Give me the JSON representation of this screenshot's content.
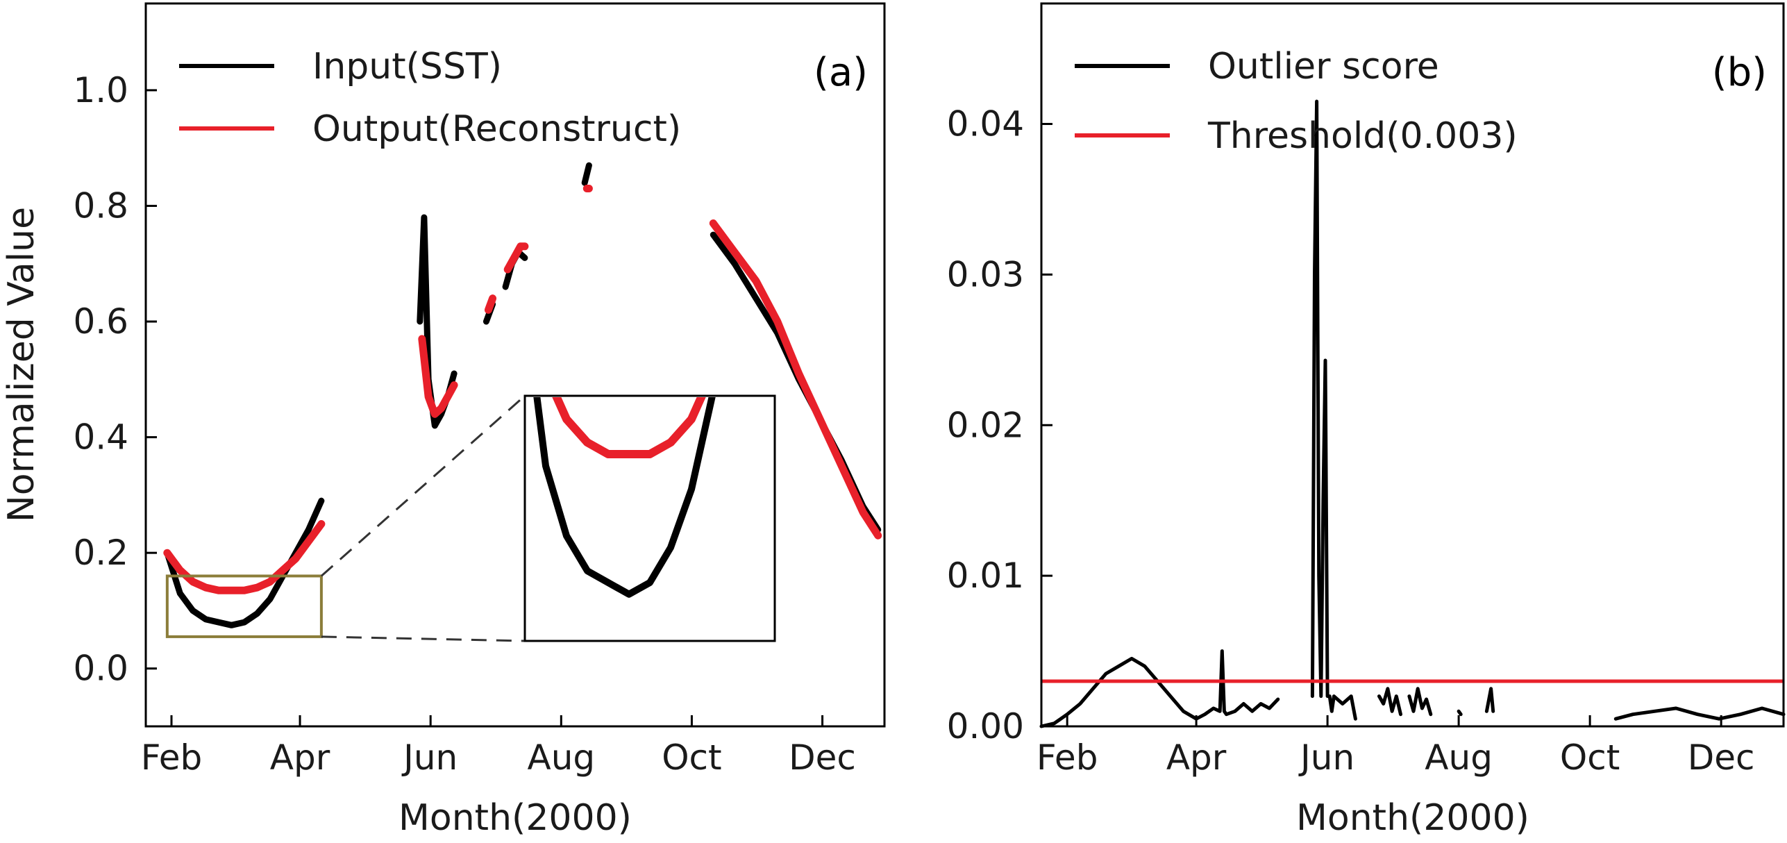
{
  "chart_data": [
    {
      "panel_label": "(a)",
      "type": "line",
      "xlabel": "Month(2000)",
      "ylabel": "Normalized Value",
      "x_unit": "day of year 2000",
      "xlim": [
        20,
        365
      ],
      "ylim": [
        -0.1,
        1.15
      ],
      "x_ticks": [
        {
          "x": 32,
          "label": "Feb"
        },
        {
          "x": 92,
          "label": "Apr"
        },
        {
          "x": 153,
          "label": "Jun"
        },
        {
          "x": 214,
          "label": "Aug"
        },
        {
          "x": 275,
          "label": "Oct"
        },
        {
          "x": 336,
          "label": "Dec"
        }
      ],
      "y_ticks": [
        {
          "y": 0.0,
          "label": "0.0"
        },
        {
          "y": 0.2,
          "label": "0.2"
        },
        {
          "y": 0.4,
          "label": "0.4"
        },
        {
          "y": 0.6,
          "label": "0.6"
        },
        {
          "y": 0.8,
          "label": "0.8"
        },
        {
          "y": 1.0,
          "label": "1.0"
        }
      ],
      "legend": "top-left",
      "panel_label_position": "top-right",
      "series": [
        {
          "name": "Input(SST)",
          "color": "#000000",
          "segments": [
            {
              "x": [
                30,
                36,
                42,
                48,
                54,
                60,
                66,
                72,
                78,
                84,
                90,
                96,
                102
              ],
              "y": [
                0.2,
                0.13,
                0.1,
                0.085,
                0.08,
                0.075,
                0.08,
                0.095,
                0.12,
                0.16,
                0.2,
                0.24,
                0.29
              ]
            },
            {
              "x": [
                148,
                150,
                152,
                155,
                158,
                161,
                164
              ],
              "y": [
                0.6,
                0.78,
                0.5,
                0.42,
                0.44,
                0.47,
                0.51
              ]
            },
            {
              "x": [
                179,
                182
              ],
              "y": [
                0.6,
                0.63
              ]
            },
            {
              "x": [
                188,
                191,
                194,
                197
              ],
              "y": [
                0.66,
                0.7,
                0.72,
                0.71
              ]
            },
            {
              "x": [
                225,
                227
              ],
              "y": [
                0.84,
                0.87
              ]
            },
            {
              "x": [
                285,
                295,
                305,
                315,
                325,
                335,
                345,
                355,
                362
              ],
              "y": [
                0.75,
                0.7,
                0.64,
                0.58,
                0.5,
                0.43,
                0.36,
                0.28,
                0.24
              ]
            }
          ]
        },
        {
          "name": "Output(Reconstruct)",
          "color": "#e8202a",
          "segments": [
            {
              "x": [
                30,
                36,
                42,
                48,
                54,
                60,
                66,
                72,
                78,
                84,
                90,
                96,
                102
              ],
              "y": [
                0.2,
                0.17,
                0.15,
                0.14,
                0.135,
                0.135,
                0.135,
                0.14,
                0.15,
                0.17,
                0.19,
                0.22,
                0.25
              ]
            },
            {
              "x": [
                149,
                152,
                155,
                158,
                161,
                164
              ],
              "y": [
                0.57,
                0.47,
                0.44,
                0.45,
                0.47,
                0.49
              ]
            },
            {
              "x": [
                180,
                182
              ],
              "y": [
                0.62,
                0.64
              ]
            },
            {
              "x": [
                189,
                192,
                195,
                197
              ],
              "y": [
                0.69,
                0.71,
                0.73,
                0.73
              ]
            },
            {
              "x": [
                226,
                227
              ],
              "y": [
                0.83,
                0.83
              ]
            },
            {
              "x": [
                285,
                295,
                305,
                315,
                325,
                335,
                345,
                355,
                362
              ],
              "y": [
                0.77,
                0.72,
                0.67,
                0.6,
                0.51,
                0.43,
                0.35,
                0.27,
                0.23
              ]
            }
          ]
        }
      ],
      "inset": {
        "zoom_xlim": [
          30,
          102
        ],
        "zoom_ylim": [
          0.055,
          0.16
        ],
        "box_color": "#8b7d3a",
        "frame_color": "#000000",
        "connector_style": "dashed"
      }
    },
    {
      "panel_label": "(b)",
      "type": "line",
      "xlabel": "Month(2000)",
      "ylabel": "",
      "x_unit": "day of year 2000",
      "xlim": [
        20,
        365
      ],
      "ylim": [
        0,
        0.048
      ],
      "x_ticks": [
        {
          "x": 32,
          "label": "Feb"
        },
        {
          "x": 92,
          "label": "Apr"
        },
        {
          "x": 153,
          "label": "Jun"
        },
        {
          "x": 214,
          "label": "Aug"
        },
        {
          "x": 275,
          "label": "Oct"
        },
        {
          "x": 336,
          "label": "Dec"
        }
      ],
      "y_ticks": [
        {
          "y": 0.0,
          "label": "0.00"
        },
        {
          "y": 0.01,
          "label": "0.01"
        },
        {
          "y": 0.02,
          "label": "0.02"
        },
        {
          "y": 0.03,
          "label": "0.03"
        },
        {
          "y": 0.04,
          "label": "0.04"
        }
      ],
      "legend": "top-left",
      "panel_label_position": "top-right",
      "series": [
        {
          "name": "Outlier score",
          "color": "#000000",
          "segments": [
            {
              "x": [
                20,
                26,
                32,
                38,
                44,
                50,
                56,
                62,
                68,
                74,
                80,
                86,
                92,
                96,
                100,
                103,
                104,
                105,
                106,
                110,
                114,
                118,
                122,
                126,
                130
              ],
              "y": [
                0.0,
                0.0002,
                0.0008,
                0.0015,
                0.0025,
                0.0035,
                0.004,
                0.0045,
                0.004,
                0.003,
                0.002,
                0.001,
                0.0005,
                0.0008,
                0.0012,
                0.001,
                0.005,
                0.001,
                0.0008,
                0.001,
                0.0015,
                0.001,
                0.0015,
                0.0012,
                0.0018
              ]
            },
            {
              "x": [
                146,
                147,
                148,
                149,
                150,
                151,
                152,
                153,
                154,
                155,
                156,
                160,
                164,
                166
              ],
              "y": [
                0.002,
                0.03,
                0.0415,
                0.01,
                0.002,
                0.015,
                0.0243,
                0.002,
                0.002,
                0.001,
                0.002,
                0.0015,
                0.002,
                0.0005
              ]
            },
            {
              "x": [
                177,
                179,
                181,
                183,
                185,
                187
              ],
              "y": [
                0.002,
                0.0015,
                0.0025,
                0.001,
                0.002,
                0.0008
              ]
            },
            {
              "x": [
                191,
                193,
                195,
                197,
                199,
                201
              ],
              "y": [
                0.002,
                0.001,
                0.0025,
                0.0012,
                0.0018,
                0.0008
              ]
            },
            {
              "x": [
                214,
                215
              ],
              "y": [
                0.001,
                0.0008
              ]
            },
            {
              "x": [
                227,
                229,
                230
              ],
              "y": [
                0.001,
                0.0025,
                0.001
              ]
            },
            {
              "x": [
                287,
                295,
                305,
                315,
                325,
                335,
                345,
                355,
                365
              ],
              "y": [
                0.0005,
                0.0008,
                0.001,
                0.0012,
                0.0008,
                0.0005,
                0.0008,
                0.0012,
                0.0008
              ]
            }
          ]
        },
        {
          "name": "Threshold(0.003)",
          "color": "#e8202a",
          "constant": 0.003
        }
      ]
    }
  ]
}
